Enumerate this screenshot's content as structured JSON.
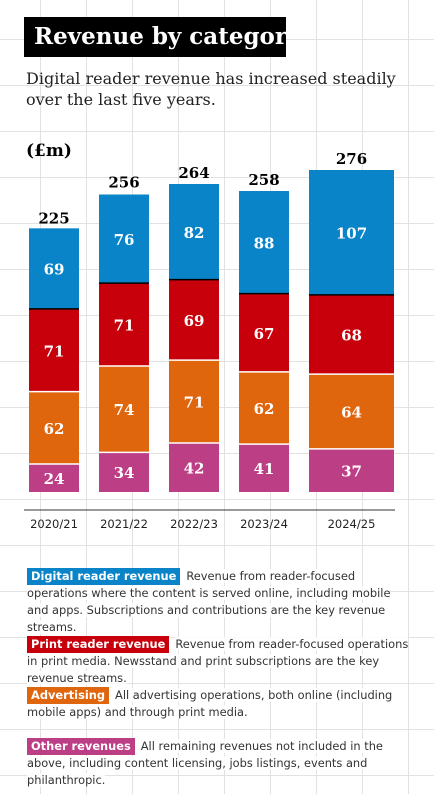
{
  "title": "Revenue by category",
  "subtitle": "Digital reader revenue has increased steadily over the last five years.",
  "unit_label": "(£m)",
  "colors": {
    "Digital reader revenue": "#0a84c8",
    "Print reader revenue": "#c8000b",
    "Advertising": "#e0660e",
    "Other revenues": "#bc3f86"
  },
  "chart_data": {
    "type": "bar",
    "stacked": true,
    "categories": [
      "2020/21",
      "2021/22",
      "2022/23",
      "2023/24",
      "2024/25"
    ],
    "totals": [
      225,
      256,
      264,
      258,
      276
    ],
    "series": [
      {
        "name": "Other revenues",
        "values": [
          24,
          34,
          42,
          41,
          37
        ]
      },
      {
        "name": "Advertising",
        "values": [
          62,
          74,
          71,
          62,
          64
        ]
      },
      {
        "name": "Print reader revenue",
        "values": [
          71,
          71,
          69,
          67,
          68
        ]
      },
      {
        "name": "Digital reader revenue",
        "values": [
          69,
          76,
          82,
          88,
          107
        ]
      }
    ],
    "ylabel": "(£m)",
    "ylim": [
      0,
      276
    ]
  },
  "legend": [
    {
      "label": "Digital reader revenue",
      "description": "Revenue from reader-focused operations where the content is served online, including mobile and apps. Subscriptions and contributions are the key revenue streams."
    },
    {
      "label": "Print reader revenue",
      "description": "Revenue from reader-focused operations in print media. Newsstand and print subscriptions are the key revenue streams."
    },
    {
      "label": "Advertising",
      "description": "All advertising operations, both online (including mobile apps) and through print media."
    },
    {
      "label": "Other revenues",
      "description": "All remaining revenues not included in the above, including content licensing, jobs listings, events and philanthropic."
    }
  ]
}
